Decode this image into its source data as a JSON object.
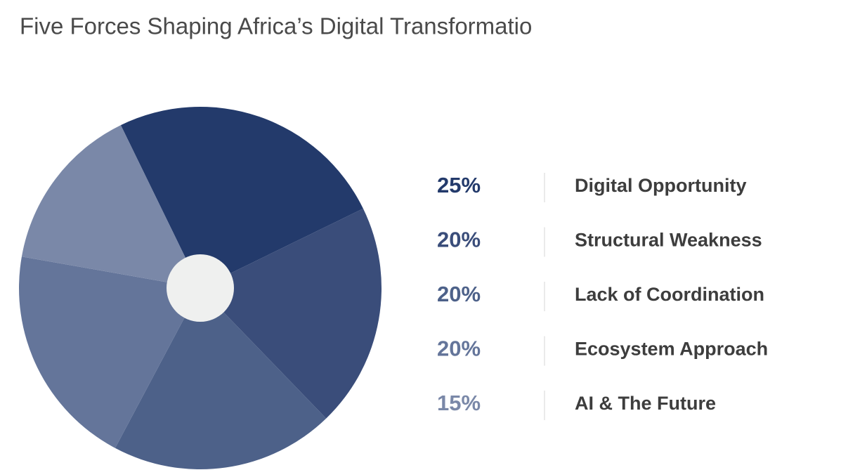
{
  "chart_data": {
    "type": "pie",
    "title": "Five Forces Shaping Africa’s Digital Transformatio",
    "categories": [
      "Digital Opportunity",
      "Structural Weakness",
      "Lack of Coordination",
      "Ecosystem Approach",
      "AI & The Future"
    ],
    "values": [
      25,
      20,
      20,
      20,
      15
    ],
    "value_labels": [
      "25%",
      "20%",
      "20%",
      "20%",
      "15%"
    ],
    "colors": [
      "#233a6b",
      "#3a4d7a",
      "#4d6189",
      "#64759a",
      "#7a88a8"
    ]
  }
}
